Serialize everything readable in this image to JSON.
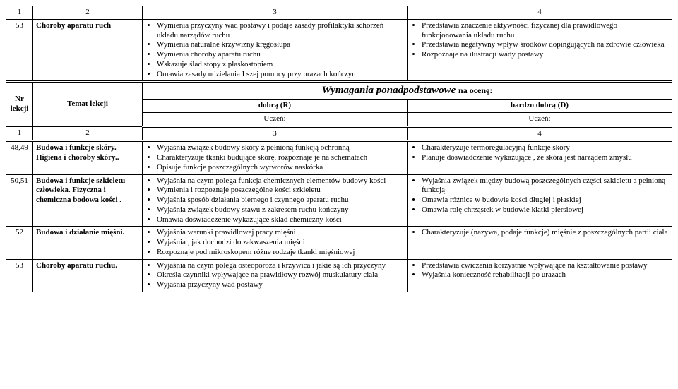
{
  "topHeader": {
    "c1": "1",
    "c2": "2",
    "c3": "3",
    "c4": "4"
  },
  "row53top": {
    "num": "53",
    "topic": "Choroby aparatu ruch",
    "col3": [
      "Wymienia przyczyny wad postawy i podaje  zasady profilaktyki schorzeń układu narządów ruchu",
      "Wymienia naturalne krzywizny kręgosłupa",
      "Wymienia choroby aparatu ruchu",
      "Wskazuje ślad stopy z płaskostopiem",
      "Omawia zasady udzielania I szej pomocy przy urazach kończyn"
    ],
    "col4": [
      "Przedstawia znaczenie aktywności fizycznej dla prawidłowego funkcjonowania  układu ruchu",
      "Przedstawia negatywny wpływ  środków dopingujących na zdrowie człowieka",
      "Rozpoznaje na ilustracji wady postawy"
    ]
  },
  "midHeader": {
    "nr": "Nr lekcji",
    "temat": "Temat lekcji",
    "wymTitle": "Wymagania ponadpodstawowe",
    "ocene": "na ocenę:",
    "dobra": "dobrą (R)",
    "bardzo": "bardzo dobrą (D)",
    "uczen": "Uczeń:"
  },
  "subHeader": {
    "c1": "1",
    "c2": "2",
    "c3": "3",
    "c4": "4"
  },
  "row4849": {
    "num": "48,49",
    "topic": "Budowa i funkcje skóry. Higiena i choroby skóry..",
    "col3": [
      "Wyjaśnia związek budowy skóry z pełnioną funkcją ochronną",
      "Charakteryzuje tkanki budujące skórę, rozpoznaje je na schematach",
      "Opisuje funkcje poszczególnych wytworów naskórka"
    ],
    "col4": [
      "Charakteryzuje termoregulacyjną funkcje skóry",
      "Planuje doświadczenie wykazujące , że skóra jest narządem zmysłu"
    ]
  },
  "row5051": {
    "num": "50,51",
    "topic": "Budowa i funkcje szkieletu człowieka. Fizyczna  i chemiczna bodowa kości .",
    "col3": [
      "Wyjaśnia na czym polega funkcja chemicznych elementów budowy kości",
      "Wymienia i rozpoznaje poszczególne kości szkieletu",
      "Wyjaśnia sposób działania biernego i czynnego aparatu ruchu",
      "Wyjaśnia związek budowy stawu z zakresem ruchu kończyny",
      "Omawia doświadczenie wykazujące skład chemiczny kości"
    ],
    "col4": [
      "Wyjaśnia  związek między budową poszczególnych części szkieletu a pełnioną funkcją",
      "Omawia różnice w budowie kości długiej i płaskiej",
      "Omawia rolę chrząstek w budowie klatki piersiowej"
    ]
  },
  "row52": {
    "num": "52",
    "topic": "Budowa i działanie mięśni.",
    "col3": [
      "Wyjaśnia warunki prawidłowej pracy mięśni",
      "Wyjaśnia , jak dochodzi do zakwaszenia mięśni",
      "Rozpoznaje pod mikroskopem różne rodzaje tkanki mięśniowej"
    ],
    "col4": [
      "Charakteryzuje (nazywa, podaje funkcje) mięśnie z poszczególnych partii ciała"
    ]
  },
  "row53b": {
    "num": "53",
    "topic": "Choroby aparatu ruchu.",
    "col3": [
      "Wyjaśnia na czym polega osteoporoza i krzywica i jakie są ich przyczyny",
      "Określa czynniki wpływające na prawidłowy rozwój muskulatury ciała",
      "Wyjaśnia przyczyny wad postawy"
    ],
    "col4": [
      "Przedstawia ćwiczenia korzystnie wpływające na kształtowanie postawy",
      "Wyjaśnia konieczność rehabilitacji po urazach"
    ]
  }
}
